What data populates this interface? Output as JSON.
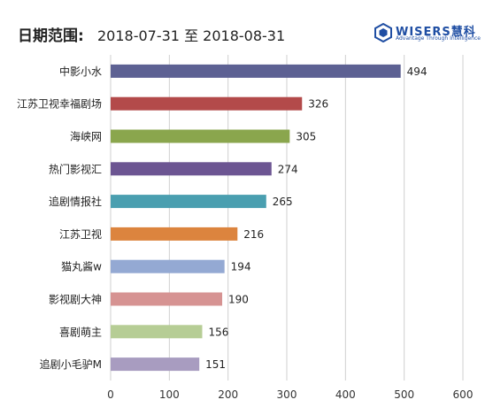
{
  "header": {
    "date_label": "日期范围:",
    "date_range": "2018-07-31 至 2018-08-31"
  },
  "logo": {
    "name": "WISERS慧科",
    "tagline": "Advantage Through Intelligence"
  },
  "chart_data": {
    "type": "bar",
    "orientation": "horizontal",
    "categories": [
      "中影小水",
      "江苏卫视幸福剧场",
      "海峡网",
      "热门影视汇",
      "追剧情报社",
      "江苏卫视",
      "猫丸酱w",
      "影视剧大神",
      "喜剧萌主",
      "追剧小毛驴M"
    ],
    "values": [
      494,
      326,
      305,
      274,
      265,
      216,
      194,
      190,
      156,
      151
    ],
    "colors": [
      "#5d6193",
      "#b34a4a",
      "#8aa64d",
      "#6c5592",
      "#4a9fb0",
      "#dc843e",
      "#94a9d3",
      "#d69392",
      "#b6cd95",
      "#a89cc0"
    ],
    "xlim": [
      0,
      600
    ],
    "xticks": [
      0,
      100,
      200,
      300,
      400,
      500,
      600
    ],
    "grid": true,
    "legend": "none"
  }
}
